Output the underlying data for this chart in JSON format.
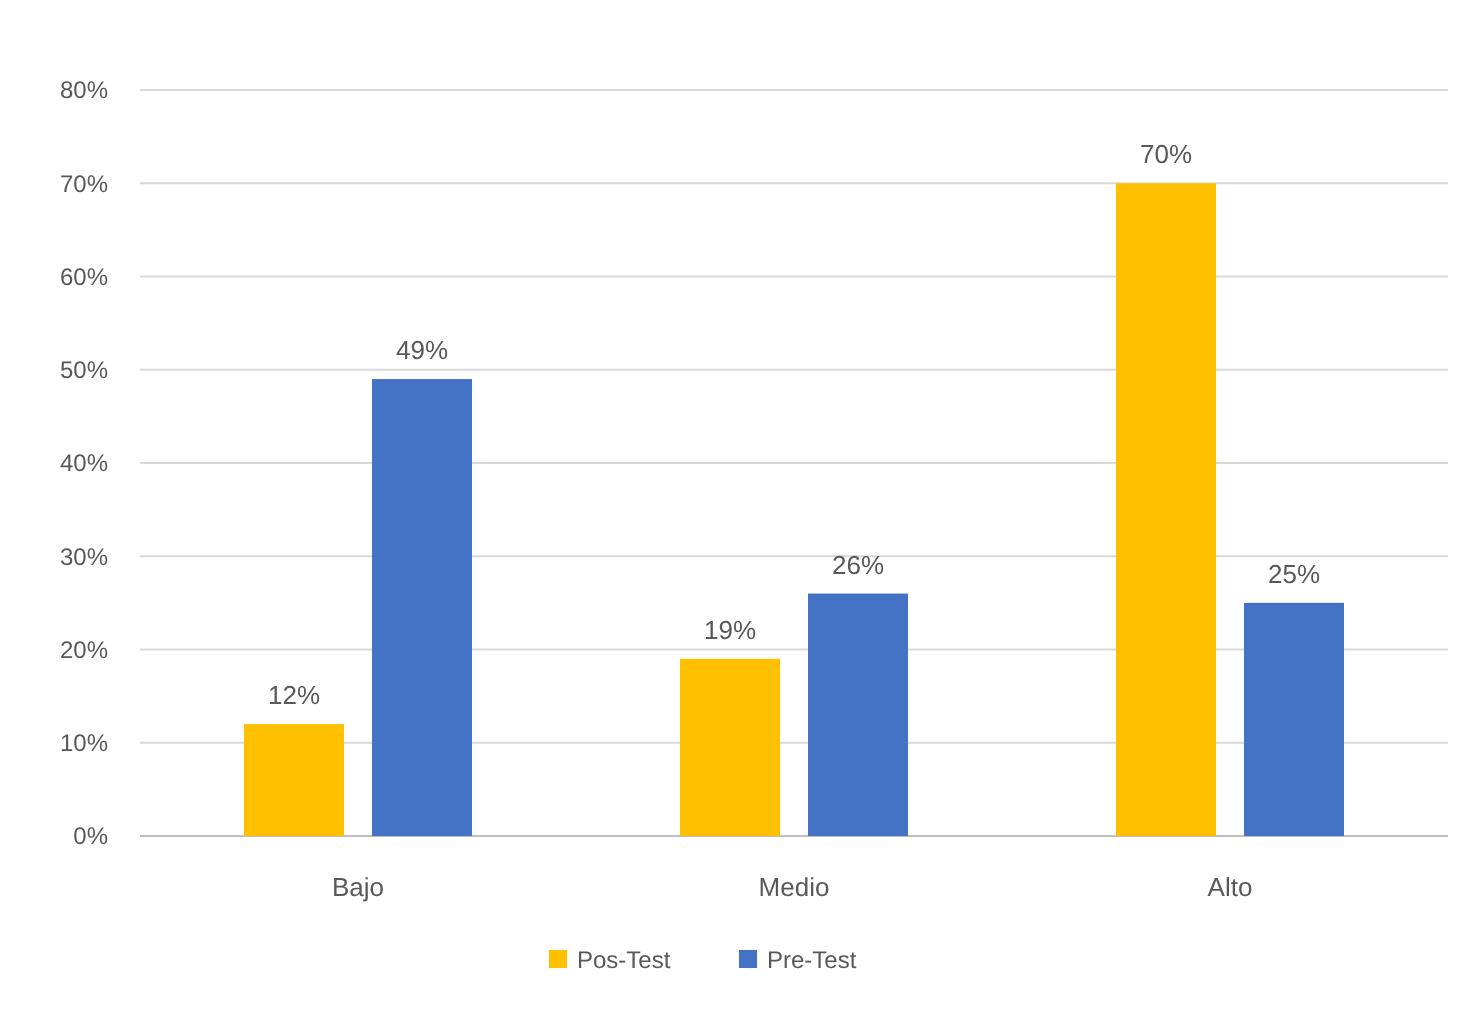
{
  "chart_data": {
    "type": "bar",
    "categories": [
      "Bajo",
      "Medio",
      "Alto"
    ],
    "series": [
      {
        "name": "Pos-Test",
        "color": "#ffc000",
        "values": [
          12,
          19,
          70
        ],
        "value_labels": [
          "12%",
          "19%",
          "70%"
        ]
      },
      {
        "name": "Pre-Test",
        "color": "#4472c4",
        "values": [
          49,
          26,
          25
        ],
        "value_labels": [
          "49%",
          "26%",
          "25%"
        ]
      }
    ],
    "ylim": [
      0,
      80
    ],
    "yticks": [
      {
        "value": 0,
        "label": "0%"
      },
      {
        "value": 10,
        "label": "10%"
      },
      {
        "value": 20,
        "label": "20%"
      },
      {
        "value": 30,
        "label": "30%"
      },
      {
        "value": 40,
        "label": "40%"
      },
      {
        "value": 50,
        "label": "50%"
      },
      {
        "value": 60,
        "label": "60%"
      },
      {
        "value": 70,
        "label": "70%"
      },
      {
        "value": 80,
        "label": "80%"
      }
    ],
    "grid": "y",
    "legend": "bottom"
  }
}
